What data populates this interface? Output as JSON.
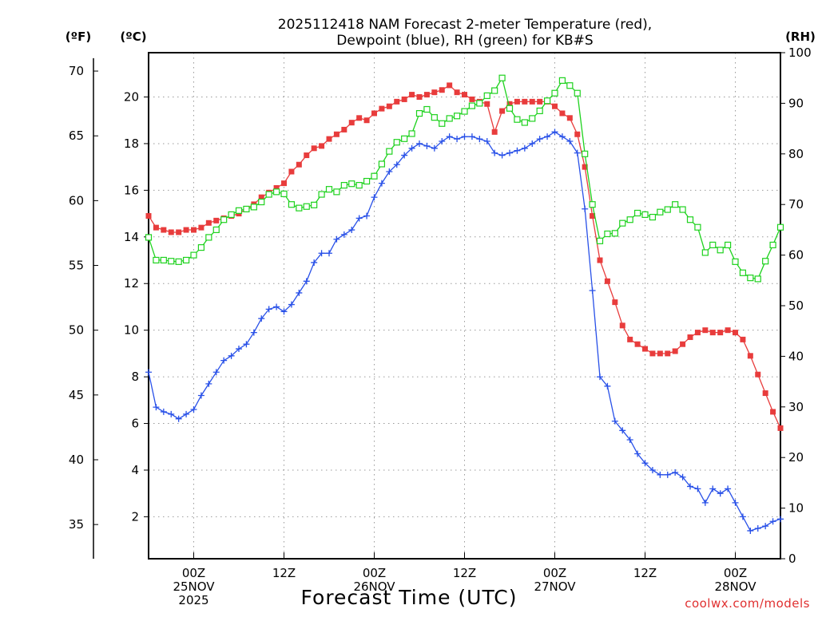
{
  "chart_data": {
    "type": "line",
    "title": [
      "2025112418 NAM Forecast 2-meter Temperature (red),",
      "Dewpoint (blue), RH (green) for KB#S"
    ],
    "xlabel": "Forecast Time (UTC)",
    "credit": "coolwx.com/models",
    "units": {
      "fahrenheit": "(ºF)",
      "celsius": "(ºC)",
      "rh": "(RH)"
    },
    "x_range_hours": [
      0,
      84
    ],
    "celsius_range": [
      0.2,
      21.9
    ],
    "rh_range": [
      0,
      100
    ],
    "x_ticks": [
      {
        "hour": 6,
        "lines": [
          "00Z",
          "25NOV",
          "2025"
        ]
      },
      {
        "hour": 18,
        "lines": [
          "12Z"
        ]
      },
      {
        "hour": 30,
        "lines": [
          "00Z",
          "26NOV"
        ]
      },
      {
        "hour": 42,
        "lines": [
          "12Z"
        ]
      },
      {
        "hour": 54,
        "lines": [
          "00Z",
          "27NOV"
        ]
      },
      {
        "hour": 66,
        "lines": [
          "12Z"
        ]
      },
      {
        "hour": 78,
        "lines": [
          "00Z",
          "28NOV"
        ]
      }
    ],
    "celsius_ticks": [
      2,
      4,
      6,
      8,
      10,
      12,
      14,
      16,
      18,
      20
    ],
    "fahrenheit_ticks": [
      35,
      40,
      45,
      50,
      55,
      60,
      65,
      70
    ],
    "rh_ticks": [
      0,
      10,
      20,
      30,
      40,
      50,
      60,
      70,
      80,
      90,
      100
    ],
    "x_hours": [
      0,
      1,
      2,
      3,
      4,
      5,
      6,
      7,
      8,
      9,
      10,
      11,
      12,
      13,
      14,
      15,
      16,
      17,
      18,
      19,
      20,
      21,
      22,
      23,
      24,
      25,
      26,
      27,
      28,
      29,
      30,
      31,
      32,
      33,
      34,
      35,
      36,
      37,
      38,
      39,
      40,
      41,
      42,
      43,
      44,
      45,
      46,
      47,
      48,
      49,
      50,
      51,
      52,
      53,
      54,
      55,
      56,
      57,
      58,
      59,
      60,
      61,
      62,
      63,
      64,
      65,
      66,
      67,
      68,
      69,
      70,
      71,
      72,
      73,
      74,
      75,
      76,
      77,
      78,
      79,
      80,
      81,
      82,
      83,
      84
    ],
    "series": [
      {
        "name": "2-m Temperature (°C)",
        "color": "#e83c3c",
        "marker": "filled-square",
        "axis": "celsius",
        "values": [
          14.9,
          14.4,
          14.3,
          14.2,
          14.2,
          14.3,
          14.3,
          14.4,
          14.6,
          14.7,
          14.8,
          14.9,
          15.0,
          15.2,
          15.4,
          15.7,
          15.9,
          16.1,
          16.3,
          16.8,
          17.1,
          17.5,
          17.8,
          17.9,
          18.2,
          18.4,
          18.6,
          18.9,
          19.1,
          19.0,
          19.3,
          19.5,
          19.6,
          19.8,
          19.9,
          20.1,
          20.0,
          20.1,
          20.2,
          20.3,
          20.5,
          20.2,
          20.1,
          19.9,
          19.8,
          19.7,
          18.5,
          19.4,
          19.7,
          19.8,
          19.8,
          19.8,
          19.8,
          19.8,
          19.6,
          19.3,
          19.1,
          18.4,
          17.0,
          14.9,
          13.0,
          12.1,
          11.2,
          10.2,
          9.6,
          9.4,
          9.2,
          9.0,
          9.0,
          9.0,
          9.1,
          9.4,
          9.7,
          9.9,
          10.0,
          9.9,
          9.9,
          10.0,
          9.9,
          9.6,
          8.9,
          8.1,
          7.3,
          6.5,
          5.8
        ]
      },
      {
        "name": "Dewpoint (°C)",
        "color": "#2850e8",
        "marker": "plus",
        "axis": "celsius",
        "values": [
          8.2,
          6.7,
          6.5,
          6.4,
          6.2,
          6.4,
          6.6,
          7.2,
          7.7,
          8.2,
          8.7,
          8.9,
          9.2,
          9.4,
          9.9,
          10.5,
          10.9,
          11.0,
          10.8,
          11.1,
          11.6,
          12.1,
          12.9,
          13.3,
          13.3,
          13.9,
          14.1,
          14.3,
          14.8,
          14.9,
          15.7,
          16.3,
          16.8,
          17.1,
          17.5,
          17.8,
          18.0,
          17.9,
          17.8,
          18.1,
          18.3,
          18.2,
          18.3,
          18.3,
          18.2,
          18.1,
          17.6,
          17.5,
          17.6,
          17.7,
          17.8,
          18.0,
          18.2,
          18.3,
          18.5,
          18.3,
          18.1,
          17.6,
          15.2,
          11.7,
          8.0,
          7.6,
          6.1,
          5.7,
          5.3,
          4.7,
          4.3,
          4.0,
          3.8,
          3.8,
          3.9,
          3.7,
          3.3,
          3.2,
          2.6,
          3.2,
          3.0,
          3.2,
          2.6,
          2.0,
          1.4,
          1.5,
          1.6,
          1.8,
          1.9
        ]
      },
      {
        "name": "Relative Humidity (%)",
        "color": "#1ed21e",
        "marker": "open-square",
        "axis": "rh",
        "values": [
          63.5,
          59.0,
          59.0,
          58.8,
          58.7,
          59.0,
          60.0,
          61.5,
          63.5,
          65.0,
          67.0,
          68.0,
          68.8,
          69.1,
          69.5,
          70.5,
          72.0,
          72.5,
          72.1,
          70.0,
          69.3,
          69.6,
          69.9,
          72.0,
          73.0,
          72.5,
          73.8,
          74.1,
          73.8,
          74.6,
          75.6,
          78.0,
          80.5,
          82.3,
          83.0,
          84.0,
          88.0,
          88.8,
          87.2,
          86.0,
          87.0,
          87.5,
          88.4,
          89.5,
          90.0,
          91.5,
          92.5,
          95.0,
          89.0,
          86.8,
          86.2,
          87.0,
          88.5,
          90.5,
          92.0,
          94.5,
          93.5,
          92.0,
          80.0,
          70.0,
          62.8,
          64.2,
          64.3,
          66.3,
          67.0,
          68.3,
          68.0,
          67.5,
          68.5,
          69.0,
          70.0,
          69.0,
          67.0,
          65.5,
          60.5,
          62.0,
          61.0,
          62.0,
          58.7,
          56.5,
          55.5,
          55.3,
          58.8,
          62.0,
          65.5
        ]
      }
    ]
  }
}
